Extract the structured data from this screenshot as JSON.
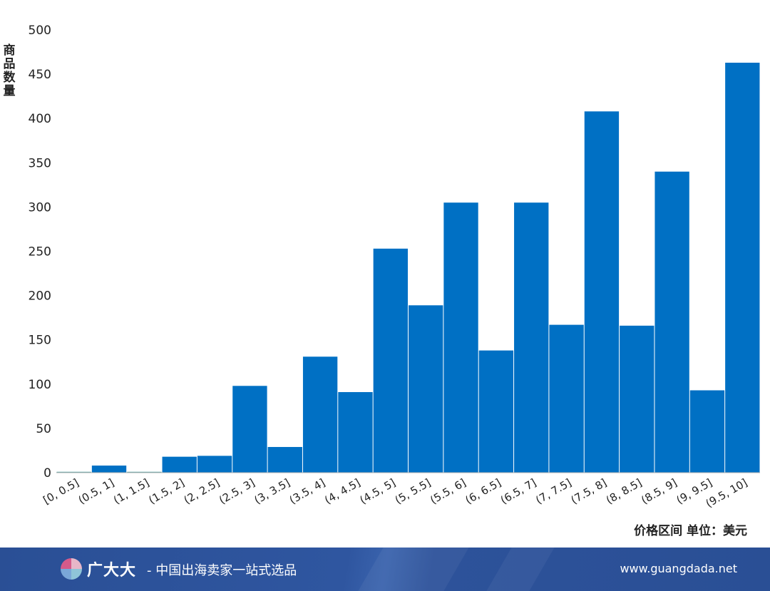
{
  "chart_data": {
    "type": "bar",
    "title": "",
    "xlabel": "价格区间 单位：美元",
    "ylabel": "商品数量",
    "ylim": [
      0,
      500
    ],
    "yticks": [
      0,
      50,
      100,
      150,
      200,
      250,
      300,
      350,
      400,
      450,
      500
    ],
    "grid": false,
    "categories": [
      "[0, 0.5]",
      "(0.5, 1]",
      "(1, 1.5]",
      "(1.5, 2]",
      "(2, 2.5]",
      "(2.5, 3]",
      "(3, 3.5]",
      "(3.5, 4]",
      "(4, 4.5]",
      "(4.5, 5]",
      "(5, 5.5]",
      "(5.5, 6]",
      "(6, 6.5]",
      "(6.5, 7]",
      "(7, 7.5]",
      "(7.5, 8]",
      "(8, 8.5]",
      "(8.5, 9]",
      "(9, 9.5]",
      "(9.5, 10]"
    ],
    "values": [
      1,
      8,
      1,
      18,
      19,
      98,
      29,
      131,
      91,
      253,
      189,
      305,
      138,
      305,
      167,
      408,
      166,
      340,
      93,
      463
    ],
    "bar_color": "#0070c4",
    "tiny_bar_color": "#5aa6a6"
  },
  "footer": {
    "brand": "广大大",
    "slogan": "- 中国出海卖家一站式选品",
    "url": "www.guangdada.net",
    "background_color": "#2b5096",
    "logo_icon": "pie-logo-icon"
  }
}
